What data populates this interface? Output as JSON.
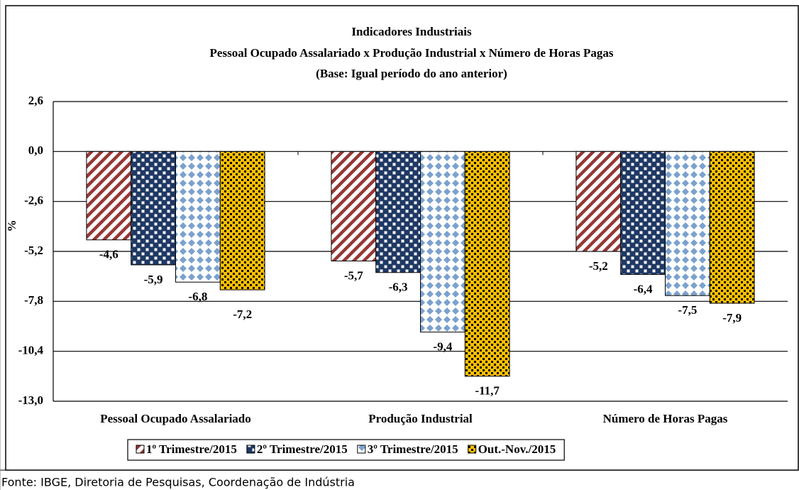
{
  "chart_data": {
    "type": "bar",
    "title": "Indicadores Industriais",
    "subtitle": "Pessoal Ocupado  Assalariado x Produção Industrial x Número de Horas Pagas",
    "subtitle2": "(Base: Igual período do ano anterior)",
    "y_label": "%",
    "source": "Fonte: IBGE, Diretoria de Pesquisas, Coordenação de Indústria",
    "categories": [
      "Pessoal Ocupado Assalariado",
      "Produção Industrial",
      "Número de Horas Pagas"
    ],
    "series": [
      {
        "name": "1º Trimestre/2015",
        "color": "#953735",
        "values": [
          -4.6,
          -5.7,
          -5.2
        ],
        "value_labels": [
          "-4,6",
          "-5,7",
          "-5,2"
        ]
      },
      {
        "name": "2º Trimestre/2015",
        "color": "#1f3864",
        "values": [
          -5.9,
          -6.3,
          -6.4
        ],
        "value_labels": [
          "-5,9",
          "-6,3",
          "-6,4"
        ]
      },
      {
        "name": "3º Trimestre/2015",
        "color": "#4f81bd",
        "values": [
          -6.8,
          -9.4,
          -7.5
        ],
        "value_labels": [
          "-6,8",
          "-9,4",
          "-7,5"
        ]
      },
      {
        "name": "Out.-Nov./2015",
        "color": "#ffc000",
        "values": [
          -7.2,
          -11.7,
          -7.9
        ],
        "value_labels": [
          "-7,2",
          "-11,7",
          "-7,9"
        ]
      }
    ],
    "ylim": [
      -13,
      2.6
    ],
    "yticks": [
      {
        "value": 2.6,
        "label": "2,6"
      },
      {
        "value": 0,
        "label": "0,0"
      },
      {
        "value": -2.6,
        "label": "-2,6"
      },
      {
        "value": -5.2,
        "label": "-5,2"
      },
      {
        "value": -7.8,
        "label": "-7,8"
      },
      {
        "value": -10.4,
        "label": "-10,4"
      },
      {
        "value": -13,
        "label": "-13,0"
      }
    ],
    "grid": true
  }
}
